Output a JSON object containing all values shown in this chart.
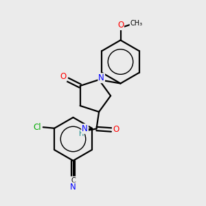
{
  "bg_color": "#ebebeb",
  "bond_color": "#000000",
  "bond_lw": 1.6,
  "atom_colors": {
    "N": "#0000ff",
    "O": "#ff0000",
    "Cl": "#00aa00",
    "C": "#000000",
    "H_teal": "#008080"
  },
  "fs_main": 8.5,
  "fs_small": 7.0
}
